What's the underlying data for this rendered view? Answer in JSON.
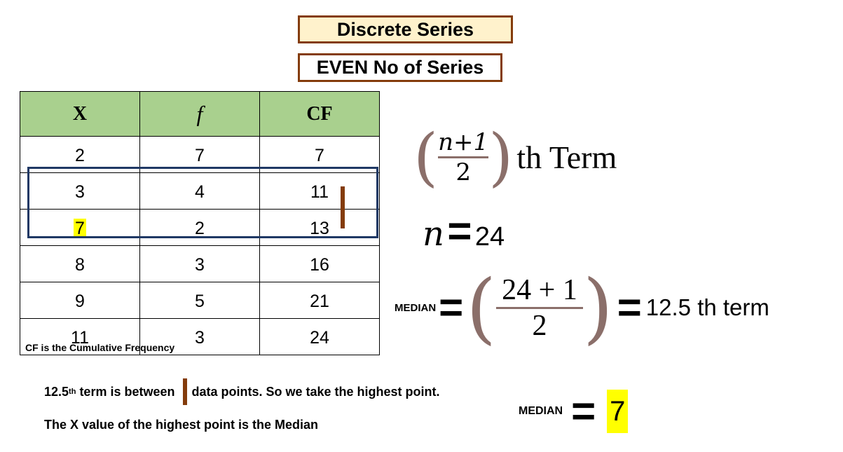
{
  "titles": {
    "main": "Discrete Series",
    "sub": "EVEN No of Series"
  },
  "table": {
    "headers": [
      "X",
      "f",
      "CF"
    ],
    "rows": [
      [
        "2",
        "7",
        "7"
      ],
      [
        "3",
        "4",
        "11"
      ],
      [
        "7",
        "2",
        "13"
      ],
      [
        "8",
        "3",
        "16"
      ],
      [
        "9",
        "5",
        "21"
      ],
      [
        "11",
        "3",
        "24"
      ]
    ],
    "footnote": "CF is the Cumulative Frequency"
  },
  "formula": {
    "numerator": "n+1",
    "denominator": "2",
    "suffix": "th Term"
  },
  "n_line": {
    "var": "n",
    "eq": "=",
    "value": "24"
  },
  "median_line": {
    "label": "MEDIAN",
    "eq": "=",
    "numerator": "24 + 1",
    "denominator": "2",
    "result": "12.5 th term"
  },
  "notes": {
    "line1_pre": "12.5",
    "line1_sup": "th",
    "line1_mid": " term is between",
    "line1_post": "data points. So we take the highest point.",
    "line2": "The X value of the highest point is the Median"
  },
  "result": {
    "label": "MEDIAN",
    "eq": "=",
    "value": "7"
  },
  "colors": {
    "title_border": "#843c0c",
    "title_fill": "#fff2cc",
    "header_fill": "#a9d08e",
    "highlight_box": "#1f3864",
    "highlight": "#ffff00",
    "marker": "#843c0c"
  }
}
